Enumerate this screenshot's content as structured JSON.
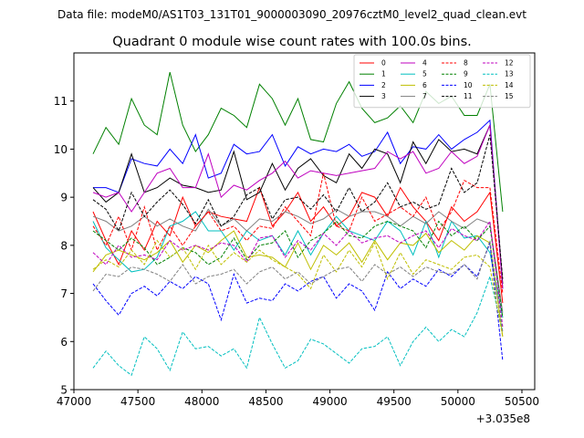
{
  "header": {
    "data_file": "Data file: modeM0/AS1T03_131T01_9000003090_20976cztM0_level2_quad_clean.evt"
  },
  "chart_data": {
    "type": "line",
    "title": "Quadrant 0 module wise count rates with 100.0s bins.",
    "xlabel": "",
    "ylabel": "",
    "x_offset_label": "+3.035e8",
    "xlim": [
      47000,
      50600
    ],
    "ylim": [
      5,
      12
    ],
    "x_ticks": [
      47000,
      47500,
      48000,
      48500,
      49000,
      49500,
      50000,
      50500
    ],
    "y_ticks": [
      5,
      6,
      7,
      8,
      9,
      10,
      11
    ],
    "legend_position": "top-right",
    "x": [
      47150,
      47250,
      47350,
      47450,
      47550,
      47650,
      47750,
      47850,
      47950,
      48050,
      48150,
      48250,
      48350,
      48450,
      48550,
      48650,
      48750,
      48850,
      48950,
      49050,
      49150,
      49250,
      49350,
      49450,
      49550,
      49650,
      49750,
      49850,
      49950,
      50050,
      50150,
      50250,
      50350
    ],
    "series": [
      {
        "name": "0",
        "color": "#ff0000",
        "dash": "solid",
        "values": [
          8.7,
          8.1,
          7.6,
          8.3,
          7.9,
          8.5,
          8.2,
          9.0,
          8.4,
          8.7,
          8.6,
          8.55,
          8.5,
          9.2,
          8.4,
          8.7,
          9.1,
          8.5,
          8.8,
          8.4,
          8.6,
          9.1,
          9.0,
          8.6,
          9.2,
          8.8,
          8.5,
          8.1,
          8.8,
          8.5,
          8.7,
          9.1,
          6.8
        ]
      },
      {
        "name": "1",
        "color": "#008000",
        "dash": "solid",
        "values": [
          9.9,
          10.45,
          10.1,
          11.05,
          10.5,
          10.3,
          11.6,
          10.5,
          9.95,
          10.3,
          10.85,
          10.7,
          10.45,
          11.35,
          11.05,
          10.5,
          11.05,
          10.2,
          10.15,
          10.95,
          11.4,
          10.85,
          10.55,
          10.65,
          10.9,
          10.55,
          11.2,
          10.95,
          11.1,
          10.7,
          10.7,
          11.35,
          8.7
        ]
      },
      {
        "name": "2",
        "color": "#0000ff",
        "dash": "solid",
        "values": [
          9.2,
          9.2,
          9.1,
          9.8,
          9.7,
          9.65,
          10.0,
          9.7,
          10.3,
          9.4,
          9.5,
          10.1,
          9.9,
          9.95,
          10.3,
          9.65,
          10.05,
          9.9,
          10.0,
          9.95,
          10.1,
          9.85,
          9.95,
          10.35,
          9.7,
          10.05,
          10.0,
          10.3,
          10.0,
          10.2,
          10.35,
          10.6,
          7.1
        ]
      },
      {
        "name": "3",
        "color": "#000000",
        "dash": "solid",
        "values": [
          9.2,
          8.9,
          9.1,
          9.9,
          9.1,
          9.2,
          9.4,
          9.25,
          9.2,
          9.1,
          9.15,
          9.95,
          8.95,
          9.1,
          9.7,
          9.15,
          9.6,
          9.8,
          9.45,
          9.3,
          9.9,
          9.6,
          10.0,
          9.9,
          9.3,
          10.15,
          9.7,
          10.2,
          9.95,
          10.0,
          9.9,
          10.5,
          7.2
        ]
      },
      {
        "name": "4",
        "color": "#bf00bf",
        "dash": "solid",
        "values": [
          9.1,
          9.0,
          9.1,
          8.7,
          9.1,
          9.5,
          9.6,
          9.2,
          9.2,
          9.9,
          9.0,
          9.25,
          9.15,
          9.35,
          9.5,
          9.75,
          9.4,
          9.55,
          9.5,
          9.45,
          9.5,
          9.55,
          9.6,
          9.95,
          9.8,
          9.95,
          9.5,
          9.6,
          9.95,
          9.7,
          9.85,
          10.5,
          7.1
        ]
      },
      {
        "name": "5",
        "color": "#00bfbf",
        "dash": "solid",
        "values": [
          8.5,
          7.95,
          7.7,
          7.45,
          7.5,
          7.75,
          8.4,
          8.5,
          8.7,
          8.3,
          8.3,
          7.9,
          8.3,
          8.1,
          8.2,
          7.8,
          8.3,
          7.8,
          8.25,
          8.6,
          8.3,
          8.2,
          8.1,
          8.5,
          8.3,
          7.8,
          8.5,
          7.75,
          8.5,
          8.15,
          8.2,
          7.85,
          6.5
        ]
      },
      {
        "name": "6",
        "color": "#bfbf00",
        "dash": "solid",
        "values": [
          7.45,
          7.8,
          7.9,
          7.8,
          7.7,
          7.85,
          8.1,
          7.65,
          8.0,
          7.85,
          8.1,
          8.3,
          7.75,
          7.8,
          7.75,
          7.55,
          8.05,
          7.5,
          8.0,
          7.8,
          8.05,
          7.65,
          8.1,
          7.7,
          8.05,
          8.0,
          8.25,
          7.85,
          8.1,
          7.9,
          8.2,
          8.05,
          6.1
        ]
      },
      {
        "name": "7",
        "color": "#808080",
        "dash": "solid",
        "values": [
          8.6,
          8.5,
          8.3,
          8.4,
          8.6,
          8.4,
          8.55,
          8.4,
          8.3,
          8.75,
          8.4,
          8.55,
          8.3,
          8.55,
          8.5,
          8.7,
          8.6,
          8.45,
          8.55,
          8.75,
          8.6,
          8.7,
          8.7,
          8.6,
          8.4,
          8.6,
          8.45,
          8.7,
          8.5,
          8.35,
          8.55,
          8.45,
          6.6
        ]
      },
      {
        "name": "8",
        "color": "#ff0000",
        "dash": "dashed",
        "values": [
          8.4,
          8.0,
          8.6,
          7.9,
          8.8,
          7.9,
          8.4,
          8.0,
          8.4,
          8.7,
          8.3,
          8.4,
          8.1,
          8.4,
          8.35,
          8.8,
          8.5,
          8.2,
          9.5,
          8.4,
          8.3,
          9.0,
          8.5,
          8.65,
          8.8,
          8.6,
          9.0,
          8.3,
          8.7,
          9.35,
          9.2,
          9.2,
          7.0
        ]
      },
      {
        "name": "9",
        "color": "#008000",
        "dash": "dashed",
        "values": [
          8.3,
          8.1,
          7.9,
          8.15,
          7.95,
          7.6,
          7.75,
          7.95,
          7.85,
          7.6,
          7.75,
          8.15,
          7.7,
          8.0,
          8.05,
          8.3,
          7.75,
          8.1,
          8.25,
          8.5,
          8.2,
          8.15,
          8.4,
          8.5,
          8.4,
          8.3,
          7.95,
          8.5,
          8.2,
          8.4,
          8.1,
          8.4,
          6.5
        ]
      },
      {
        "name": "10",
        "color": "#0000ff",
        "dash": "dashed",
        "values": [
          7.2,
          6.85,
          6.55,
          7.0,
          7.15,
          6.95,
          7.25,
          7.1,
          7.35,
          7.2,
          6.45,
          7.4,
          6.8,
          6.9,
          6.85,
          7.2,
          7.05,
          7.25,
          7.35,
          6.9,
          7.2,
          7.05,
          6.65,
          7.45,
          7.1,
          7.3,
          7.15,
          7.5,
          7.35,
          7.6,
          7.35,
          8.05,
          5.6
        ]
      },
      {
        "name": "11",
        "color": "#000000",
        "dash": "dashed",
        "values": [
          8.95,
          8.75,
          8.3,
          9.1,
          8.6,
          8.9,
          9.15,
          8.85,
          8.45,
          8.95,
          8.4,
          8.6,
          9.05,
          9.2,
          8.55,
          8.95,
          9.0,
          8.75,
          9.05,
          8.7,
          9.2,
          8.7,
          8.9,
          9.3,
          8.8,
          8.9,
          8.75,
          8.85,
          9.6,
          9.1,
          9.3,
          10.3,
          7.3
        ]
      },
      {
        "name": "12",
        "color": "#bf00bf",
        "dash": "dashed",
        "values": [
          7.85,
          7.6,
          8.0,
          7.75,
          7.8,
          7.7,
          8.1,
          7.9,
          8.0,
          7.9,
          8.05,
          8.0,
          7.65,
          8.15,
          8.2,
          7.75,
          8.1,
          7.9,
          8.25,
          8.0,
          8.3,
          8.05,
          8.15,
          8.2,
          8.05,
          8.2,
          8.3,
          7.95,
          8.35,
          8.2,
          8.1,
          8.5,
          6.3
        ]
      },
      {
        "name": "13",
        "color": "#00bfbf",
        "dash": "dashed",
        "values": [
          5.45,
          5.8,
          5.5,
          5.3,
          6.1,
          5.85,
          5.4,
          6.2,
          5.85,
          5.9,
          5.7,
          5.85,
          5.45,
          6.5,
          5.95,
          5.45,
          5.6,
          6.05,
          5.95,
          5.75,
          5.55,
          5.85,
          5.9,
          6.1,
          5.5,
          6.0,
          6.3,
          6.0,
          6.25,
          6.1,
          6.6,
          7.35,
          6.2
        ]
      },
      {
        "name": "14",
        "color": "#bfbf00",
        "dash": "dashed",
        "values": [
          7.5,
          7.7,
          7.55,
          7.9,
          7.6,
          8.1,
          7.75,
          7.95,
          7.5,
          8.0,
          7.6,
          7.85,
          7.65,
          7.9,
          7.7,
          7.55,
          7.4,
          7.1,
          7.8,
          7.45,
          7.9,
          7.55,
          8.05,
          7.3,
          7.85,
          7.4,
          7.7,
          7.6,
          7.5,
          7.75,
          7.8,
          7.55,
          6.1
        ]
      },
      {
        "name": "15",
        "color": "#808080",
        "dash": "dashed",
        "values": [
          7.05,
          7.4,
          7.35,
          7.55,
          7.5,
          7.4,
          7.25,
          7.6,
          7.2,
          7.35,
          7.4,
          7.5,
          7.2,
          7.45,
          7.55,
          7.3,
          7.45,
          7.2,
          7.35,
          7.5,
          7.55,
          7.25,
          7.6,
          7.4,
          7.55,
          7.35,
          7.55,
          7.45,
          7.4,
          7.6,
          7.3,
          8.1,
          6.2
        ]
      }
    ]
  }
}
